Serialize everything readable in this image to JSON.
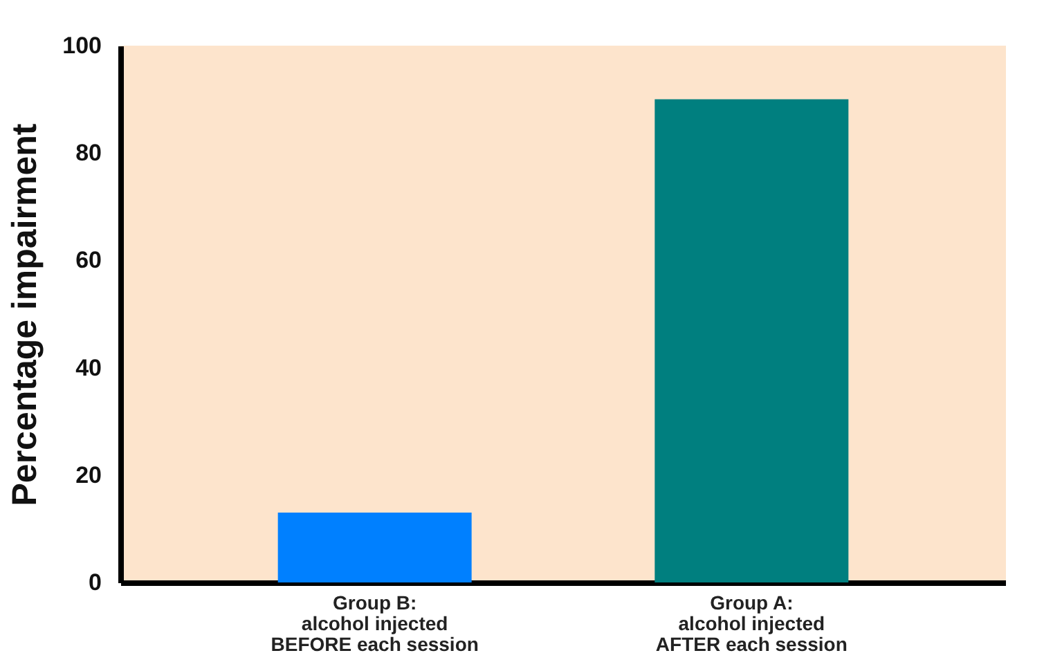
{
  "chart_data": {
    "type": "bar",
    "ylabel": "Percentage impairment",
    "categories": [
      "Group B:\nalcohol injected\nBEFORE each session",
      "Group A:\nalcohol injected\nAFTER each session"
    ],
    "values": [
      13,
      90
    ],
    "colors": [
      "#0080ff",
      "#007f7f"
    ],
    "ylim": [
      0,
      100
    ],
    "yticks": [
      0,
      20,
      40,
      60,
      80,
      100
    ],
    "grid": false
  }
}
